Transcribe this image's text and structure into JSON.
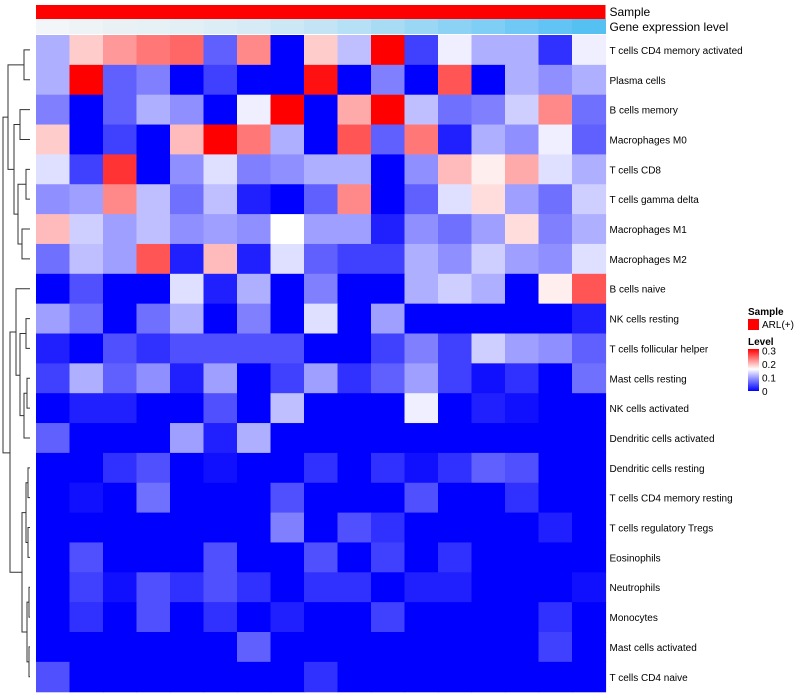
{
  "chart_data": {
    "type": "heatmap",
    "annotation_tracks": [
      {
        "label": "Sample"
      },
      {
        "label": "Gene expression level"
      }
    ],
    "rows": [
      "T cells CD4 memory activated",
      "Plasma cells",
      "B cells memory",
      "Macrophages M0",
      "T cells CD8",
      "T cells gamma delta",
      "Macrophages M1",
      "Macrophages M2",
      "B cells naive",
      "NK cells resting",
      "T cells follicular helper",
      "Mast cells resting",
      "NK cells activated",
      "Dendritic cells activated",
      "Dendritic cells resting",
      "T cells CD4 memory resting",
      "T cells regulatory  Tregs",
      "Eosinophils",
      "Neutrophils",
      "Monocytes",
      "Mast cells activated",
      "T cells CD4 naive"
    ],
    "n_columns": 17,
    "values": [
      [
        0.11,
        0.19,
        0.22,
        0.24,
        0.25,
        0.06,
        0.23,
        0.0,
        0.19,
        0.12,
        0.31,
        0.04,
        0.15,
        0.11,
        0.11,
        0.03,
        0.15
      ],
      [
        0.11,
        0.31,
        0.06,
        0.08,
        0.0,
        0.04,
        0.0,
        0.0,
        0.3,
        0.0,
        0.08,
        0.0,
        0.26,
        0.0,
        0.11,
        0.09,
        0.11
      ],
      [
        0.08,
        0.0,
        0.06,
        0.11,
        0.09,
        0.0,
        0.15,
        0.31,
        0.0,
        0.21,
        0.31,
        0.12,
        0.07,
        0.08,
        0.13,
        0.23,
        0.07
      ],
      [
        0.19,
        0.0,
        0.04,
        0.0,
        0.2,
        0.31,
        0.24,
        0.11,
        0.0,
        0.26,
        0.06,
        0.24,
        0.02,
        0.11,
        0.09,
        0.15,
        0.06
      ],
      [
        0.14,
        0.04,
        0.28,
        0.0,
        0.09,
        0.14,
        0.08,
        0.09,
        0.11,
        0.11,
        0.0,
        0.09,
        0.2,
        0.17,
        0.21,
        0.14,
        0.11
      ],
      [
        0.09,
        0.1,
        0.23,
        0.12,
        0.07,
        0.12,
        0.02,
        0.0,
        0.06,
        0.23,
        0.0,
        0.06,
        0.14,
        0.18,
        0.1,
        0.07,
        0.13
      ],
      [
        0.2,
        0.13,
        0.1,
        0.12,
        0.09,
        0.1,
        0.09,
        0.16,
        0.1,
        0.1,
        0.02,
        0.09,
        0.07,
        0.1,
        0.18,
        0.08,
        0.11
      ],
      [
        0.07,
        0.12,
        0.1,
        0.26,
        0.02,
        0.2,
        0.02,
        0.14,
        0.06,
        0.04,
        0.04,
        0.11,
        0.09,
        0.13,
        0.1,
        0.09,
        0.14
      ],
      [
        0.0,
        0.05,
        0.0,
        0.0,
        0.14,
        0.02,
        0.11,
        0.0,
        0.08,
        0.0,
        0.0,
        0.11,
        0.13,
        0.11,
        0.0,
        0.17,
        0.26
      ],
      [
        0.1,
        0.07,
        0.0,
        0.07,
        0.11,
        0.0,
        0.08,
        0.0,
        0.14,
        0.0,
        0.1,
        0.0,
        0.0,
        0.0,
        0.0,
        0.0,
        0.02
      ],
      [
        0.02,
        0.0,
        0.05,
        0.03,
        0.05,
        0.05,
        0.05,
        0.05,
        0.0,
        0.0,
        0.04,
        0.08,
        0.04,
        0.13,
        0.1,
        0.09,
        0.06
      ],
      [
        0.04,
        0.11,
        0.06,
        0.09,
        0.02,
        0.1,
        0.0,
        0.04,
        0.1,
        0.03,
        0.06,
        0.1,
        0.04,
        0.01,
        0.03,
        0.0,
        0.07
      ],
      [
        0.0,
        0.02,
        0.02,
        0.0,
        0.0,
        0.05,
        0.0,
        0.12,
        0.0,
        0.0,
        0.0,
        0.15,
        0.0,
        0.02,
        0.01,
        0.0,
        0.0
      ],
      [
        0.06,
        0.0,
        0.0,
        0.0,
        0.1,
        0.02,
        0.11,
        0.0,
        0.0,
        0.0,
        0.0,
        0.0,
        0.0,
        0.0,
        0.0,
        0.0,
        0.0
      ],
      [
        0.0,
        0.0,
        0.03,
        0.05,
        0.0,
        0.01,
        0.0,
        0.0,
        0.03,
        0.0,
        0.03,
        0.01,
        0.03,
        0.06,
        0.05,
        0.0,
        0.0
      ],
      [
        0.0,
        0.01,
        0.0,
        0.07,
        0.0,
        0.0,
        0.0,
        0.05,
        0.0,
        0.0,
        0.0,
        0.05,
        0.0,
        0.0,
        0.03,
        0.0,
        0.0
      ],
      [
        0.0,
        0.0,
        0.0,
        0.0,
        0.0,
        0.0,
        0.0,
        0.08,
        0.0,
        0.05,
        0.03,
        0.0,
        0.0,
        0.0,
        0.0,
        0.02,
        0.0
      ],
      [
        0.0,
        0.05,
        0.0,
        0.0,
        0.0,
        0.05,
        0.0,
        0.0,
        0.05,
        0.0,
        0.04,
        0.0,
        0.03,
        0.0,
        0.0,
        0.0,
        0.0
      ],
      [
        0.0,
        0.04,
        0.01,
        0.05,
        0.03,
        0.05,
        0.03,
        0.0,
        0.03,
        0.03,
        0.0,
        0.02,
        0.02,
        0.0,
        0.0,
        0.0,
        0.01
      ],
      [
        0.0,
        0.03,
        0.0,
        0.05,
        0.0,
        0.03,
        0.0,
        0.02,
        0.0,
        0.0,
        0.04,
        0.0,
        0.0,
        0.0,
        0.0,
        0.03,
        0.0
      ],
      [
        0.0,
        0.0,
        0.0,
        0.0,
        0.0,
        0.0,
        0.06,
        0.0,
        0.0,
        0.0,
        0.0,
        0.0,
        0.0,
        0.0,
        0.0,
        0.04,
        0.0
      ],
      [
        0.05,
        0.0,
        0.0,
        0.0,
        0.0,
        0.0,
        0.0,
        0.0,
        0.03,
        0.0,
        0.0,
        0.0,
        0.0,
        0.0,
        0.0,
        0.0,
        0.0
      ]
    ],
    "expression_level_colors": [
      "#f2f6f8",
      "#eef3f6",
      "#eaf1f5",
      "#e6f1f5",
      "#e2eff5",
      "#ddedf5",
      "#d6ebf5",
      "#cde8f5",
      "#c2e4f5",
      "#b5e0f5",
      "#a8dcf5",
      "#9ad7f5",
      "#8cd2f5",
      "#7ecef5",
      "#70c9f5",
      "#62c4f4",
      "#55c0f2"
    ],
    "sample_color": "#ff0000",
    "colormap": {
      "min_color": "#0000ff",
      "mid_color": "#ffffff",
      "max_color": "#ff0000",
      "min": 0,
      "mid": 0.16,
      "max": 0.31
    },
    "legend": {
      "sample_title": "Sample",
      "sample_label": "ARL(+)",
      "level_title": "Level",
      "level_ticks": [
        0.3,
        0.2,
        0.1,
        0
      ],
      "level_tick_labels": [
        "0.3",
        "0.2",
        "0.1",
        "0"
      ]
    },
    "dendrogram_side": "left",
    "grid": false
  }
}
